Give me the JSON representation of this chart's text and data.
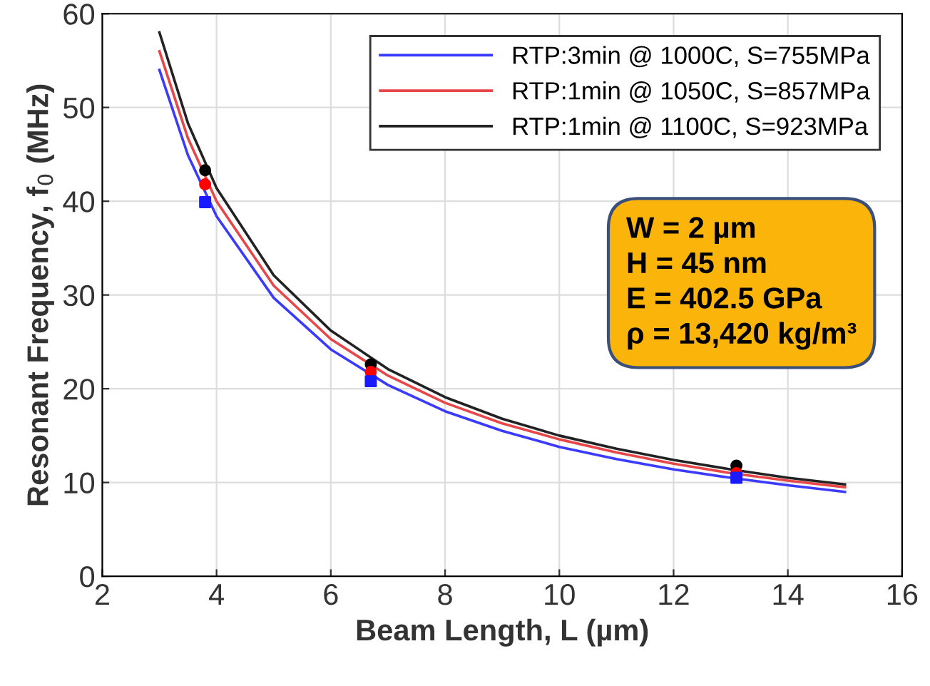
{
  "chart_data": {
    "type": "line",
    "xlabel": "Beam Length, L (µm)",
    "ylabel": "Resonant Frequency, f$_{0}$ (MHz)",
    "xlim": [
      2,
      16
    ],
    "xticks": [
      2,
      4,
      6,
      8,
      10,
      12,
      14,
      16
    ],
    "ylim": [
      0,
      60
    ],
    "yticks": [
      0,
      10,
      20,
      30,
      40,
      50,
      60
    ],
    "grid": true,
    "legend": "top right",
    "marker": "none",
    "line_style": "solid",
    "x": [
      3,
      3.5,
      4,
      5,
      6,
      7,
      8,
      9,
      10,
      11,
      12,
      13,
      14,
      15
    ],
    "series": [
      {
        "name": "RTP:3min @ 1000C, S=755MPa",
        "color": "#3b3bff",
        "values": [
          54.0,
          44.9,
          38.4,
          29.7,
          24.2,
          20.4,
          17.6,
          15.5,
          13.8,
          12.5,
          11.4,
          10.5,
          9.7,
          9.0
        ]
      },
      {
        "name": "RTP:1min @ 1050C, S=857MPa",
        "color": "#e8474a",
        "values": [
          56.0,
          46.7,
          40.0,
          31.0,
          25.3,
          21.4,
          18.5,
          16.3,
          14.6,
          13.2,
          12.0,
          11.0,
          10.2,
          9.5
        ]
      },
      {
        "name": "RTP:1min @ 1100C, S=923MPa",
        "color": "#222222",
        "values": [
          58.0,
          48.3,
          41.4,
          32.1,
          26.2,
          22.1,
          19.1,
          16.8,
          15.0,
          13.6,
          12.4,
          11.4,
          10.5,
          9.8
        ]
      },
      {
        "type": "scatter",
        "marker": "square",
        "color": "#1a1aff",
        "x": [
          3.8,
          6.7,
          13.1
        ],
        "values": [
          39.9,
          20.8,
          10.5
        ]
      },
      {
        "type": "scatter",
        "marker": "circle",
        "color": "#ff0000",
        "x": [
          3.8,
          6.7,
          13.1
        ],
        "values": [
          41.8,
          21.8,
          11.0
        ]
      },
      {
        "type": "scatter",
        "marker": "circle",
        "color": "#000000",
        "x": [
          3.8,
          6.7,
          13.1
        ],
        "values": [
          43.3,
          22.6,
          11.8
        ]
      }
    ],
    "annotations": [
      "W = 2 µm",
      "H = 45 nm",
      "E = 402.5 GPa",
      "ρ = 13,420 kg/m³"
    ]
  }
}
